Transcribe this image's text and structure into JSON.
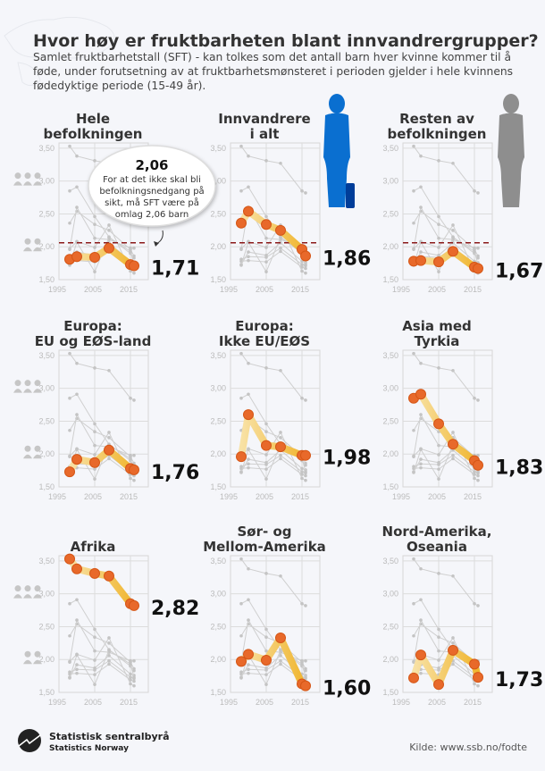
{
  "header": {
    "title": "Hvor høy er fruktbarheten blant innvandrergrupper?",
    "subtitle_lines": [
      "Samlet fruktbarhetstall (SFT) -  kan tolkes som det antall barn hver kvinne kommer til å",
      "føde, under forutsetning av at fruktbarhetsmønsteret i perioden gjelder i hele kvinnens",
      "fødedyktige periode (15-49 år)."
    ]
  },
  "callout": {
    "value": "2,06",
    "lines": [
      "For at det ikke skal bli",
      "befolkningsnedgang på",
      "sikt, må SFT være på",
      "omlag 2,06 barn"
    ]
  },
  "colors": {
    "highlight_point": "#e8692a",
    "highlight_band": "#f2c04a",
    "other_series": "#c8c8c8",
    "replacement_line": "#8b1a1a",
    "woman_immigrant": "#0a6fd0",
    "woman_rest": "#8e8e8e"
  },
  "icons": [
    "three-children-icon",
    "two-children-icon",
    "woman-with-suitcase-icon",
    "woman-icon",
    "ssb-logo-icon",
    "world-map-icon"
  ],
  "chart_data": {
    "type": "line",
    "layout": "3x3 small multiples, each highlights one series with the others in grey",
    "x": [
      1998,
      2000,
      2005,
      2009,
      2015,
      2016
    ],
    "xticks": [
      "1995",
      "2005",
      "2015"
    ],
    "xlim": [
      1995,
      2020
    ],
    "yticks": [
      "3,50",
      "3,00",
      "2,50",
      "2,00",
      "1,50"
    ],
    "ylim": [
      1.5,
      3.58
    ],
    "grid": true,
    "reference_line": {
      "value": 2.06,
      "panels": "top row"
    },
    "series": [
      {
        "name": "Hele befolkningen",
        "title_lines": [
          "Hele",
          "befolkningen"
        ],
        "values": [
          1.81,
          1.85,
          1.84,
          1.98,
          1.73,
          1.71
        ],
        "last_label": "1,71"
      },
      {
        "name": "Innvandrere i alt",
        "title_lines": [
          "Innvandrere",
          "i alt"
        ],
        "values": [
          2.36,
          2.54,
          2.34,
          2.25,
          1.96,
          1.86
        ],
        "last_label": "1,86"
      },
      {
        "name": "Resten av befolkningen",
        "title_lines": [
          "Resten av",
          "befolkningen"
        ],
        "values": [
          1.78,
          1.79,
          1.77,
          1.93,
          1.69,
          1.67
        ],
        "last_label": "1,67"
      },
      {
        "name": "Europa: EU og EØS-land",
        "title_lines": [
          "Europa:",
          "EU og EØS-land"
        ],
        "values": [
          1.73,
          1.92,
          1.87,
          2.06,
          1.78,
          1.76
        ],
        "last_label": "1,76"
      },
      {
        "name": "Europa: Ikke EU/EØS",
        "title_lines": [
          "Europa:",
          "Ikke EU/EØS"
        ],
        "values": [
          1.96,
          2.6,
          2.13,
          2.11,
          1.98,
          1.98
        ],
        "last_label": "1,98"
      },
      {
        "name": "Asia med Tyrkia",
        "title_lines": [
          "Asia med",
          "Tyrkia"
        ],
        "values": [
          2.85,
          2.91,
          2.46,
          2.15,
          1.9,
          1.83
        ],
        "last_label": "1,83"
      },
      {
        "name": "Afrika",
        "title_lines": [
          "",
          "Afrika"
        ],
        "values": [
          3.53,
          3.38,
          3.31,
          3.27,
          2.85,
          2.82
        ],
        "last_label": "2,82"
      },
      {
        "name": "Sør- og Mellom-Amerika",
        "title_lines": [
          "Sør- og",
          "Mellom-Amerika"
        ],
        "values": [
          1.97,
          2.08,
          1.99,
          2.33,
          1.63,
          1.6
        ],
        "last_label": "1,60"
      },
      {
        "name": "Nord-Amerika, Oseania",
        "title_lines": [
          "Nord-Amerika,",
          "Oseania"
        ],
        "values": [
          1.72,
          2.07,
          1.62,
          2.14,
          1.93,
          1.73
        ],
        "last_label": "1,73"
      }
    ]
  },
  "footer": {
    "logo_name": "Statistisk sentralbyrå",
    "logo_sub": "Statistics Norway",
    "source": "Kilde: www.ssb.no/fodte"
  }
}
